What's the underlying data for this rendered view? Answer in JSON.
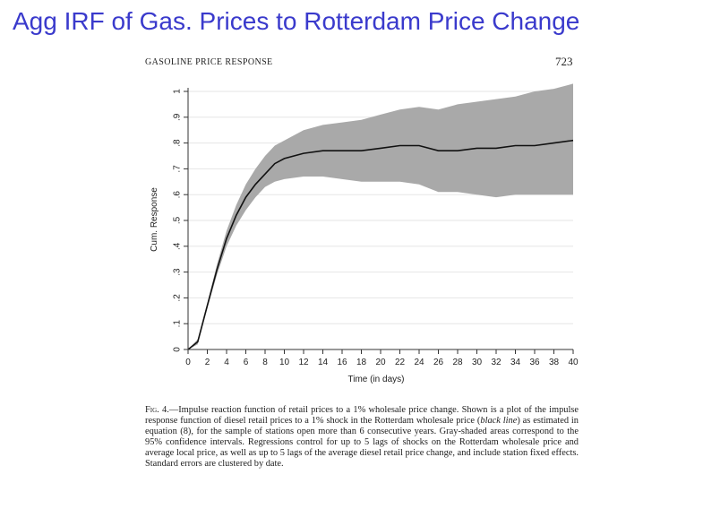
{
  "slide": {
    "title": "Agg IRF of Gas. Prices to Rotterdam Price Change"
  },
  "paper": {
    "running_head": "GASOLINE PRICE RESPONSE",
    "page_number": "723",
    "caption": {
      "fig_label": "Fig. 4.",
      "part1": "—Impulse reaction function of retail prices to a 1% wholesale price change. Shown is a plot of the impulse response function of diesel retail prices to a 1% shock in the Rotterdam wholesale price (",
      "emph": "black line",
      "part2": ") as estimated in equation (8), for the sample of stations open more than 6 consecutive years. Gray-shaded areas correspond to the 95% confidence intervals. Regressions control for up to 5 lags of shocks on the Rotterdam wholesale price and average local price, as well as up to 5 lags of the average diesel retail price change, and include station fixed effects. Standard errors are clustered by date."
    }
  },
  "colors": {
    "line": "#111111",
    "band": "#a9a9a9",
    "grid": "#e6e6e6",
    "axis": "#333333"
  },
  "chart_data": {
    "type": "line",
    "xlabel": "Time (in days)",
    "ylabel": "Cum. Response",
    "xlim": [
      0,
      40
    ],
    "ylim": [
      0,
      1
    ],
    "xticks": [
      0,
      2,
      4,
      6,
      8,
      10,
      12,
      14,
      16,
      18,
      20,
      22,
      24,
      26,
      28,
      30,
      32,
      34,
      36,
      38,
      40
    ],
    "xtick_labels": [
      "0",
      "2",
      "4",
      "6",
      "8",
      "10",
      "12",
      "14",
      "16",
      "18",
      "20",
      "22",
      "24",
      "26",
      "28",
      "30",
      "32",
      "34",
      "36",
      "38",
      "40"
    ],
    "yticks": [
      0,
      0.1,
      0.2,
      0.3,
      0.4,
      0.5,
      0.6,
      0.7,
      0.8,
      0.9,
      1
    ],
    "ytick_labels": [
      "0",
      ".1",
      ".2",
      ".3",
      ".4",
      ".5",
      ".6",
      ".7",
      ".8",
      ".9",
      "1"
    ],
    "grid": true,
    "x": [
      0,
      1,
      2,
      3,
      4,
      5,
      6,
      7,
      8,
      9,
      10,
      12,
      14,
      16,
      18,
      20,
      22,
      24,
      26,
      28,
      30,
      32,
      34,
      36,
      38,
      40
    ],
    "series": [
      {
        "values": [
          0.0,
          0.03,
          0.17,
          0.31,
          0.43,
          0.52,
          0.59,
          0.64,
          0.68,
          0.72,
          0.74,
          0.76,
          0.77,
          0.77,
          0.77,
          0.78,
          0.79,
          0.79,
          0.77,
          0.77,
          0.78,
          0.78,
          0.79,
          0.79,
          0.8,
          0.81
        ],
        "ci_lower": [
          0.0,
          0.02,
          0.16,
          0.29,
          0.4,
          0.48,
          0.54,
          0.59,
          0.63,
          0.65,
          0.66,
          0.67,
          0.67,
          0.66,
          0.65,
          0.65,
          0.65,
          0.64,
          0.61,
          0.61,
          0.6,
          0.59,
          0.6,
          0.6,
          0.6,
          0.6
        ],
        "ci_upper": [
          0.0,
          0.04,
          0.18,
          0.33,
          0.46,
          0.56,
          0.64,
          0.7,
          0.75,
          0.79,
          0.81,
          0.85,
          0.87,
          0.88,
          0.89,
          0.91,
          0.93,
          0.94,
          0.93,
          0.95,
          0.96,
          0.97,
          0.98,
          1.0,
          1.01,
          1.03
        ]
      }
    ]
  }
}
